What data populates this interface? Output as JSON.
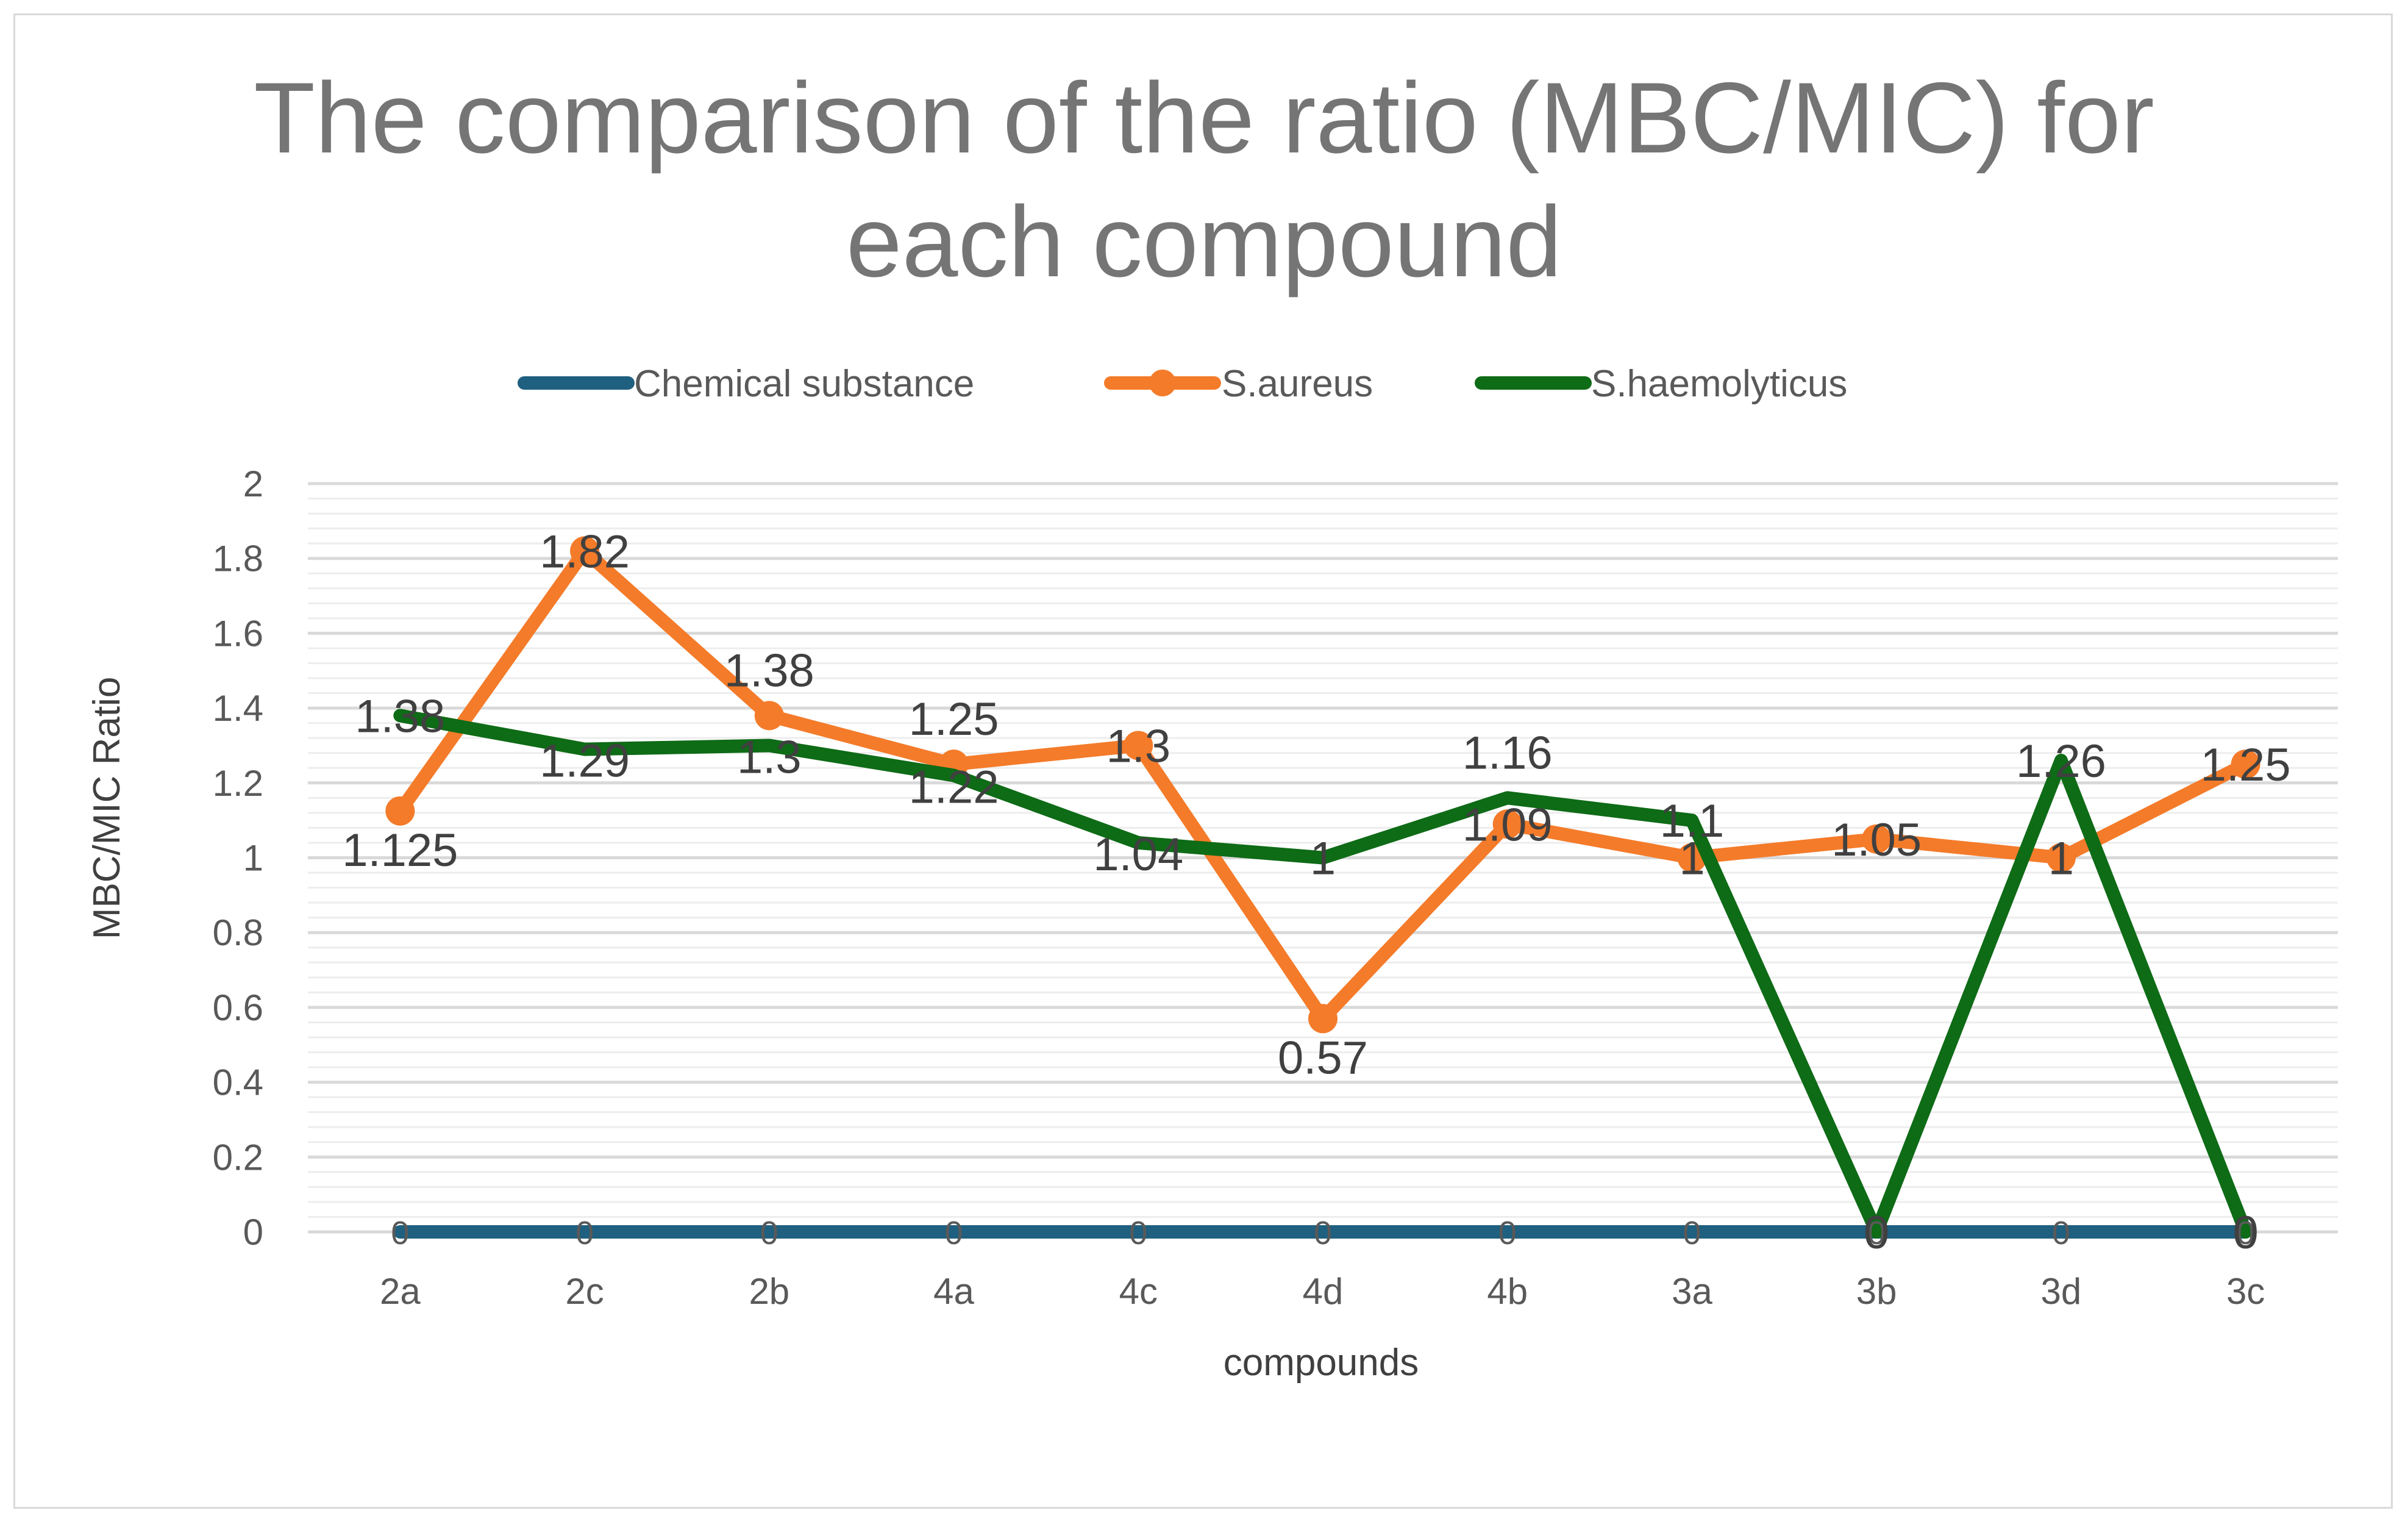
{
  "chart_data": {
    "type": "line",
    "title": "The comparison of the ratio (MBC/MIC) for each compound",
    "title_lines": [
      "The comparison of the ratio (MBC/MIC) for",
      "each compound"
    ],
    "xlabel": "compounds",
    "ylabel": "MBC/MIC Ratio",
    "categories": [
      "2a",
      "2c",
      "2b",
      "4a",
      "4c",
      "4d",
      "4b",
      "3a",
      "3b",
      "3d",
      "3c"
    ],
    "ylim": [
      0,
      2
    ],
    "y_ticks": [
      "0",
      "0.2",
      "0.4",
      "0.6",
      "0.8",
      "1",
      "1.2",
      "1.4",
      "1.6",
      "1.8",
      "2"
    ],
    "grid": true,
    "legend_position": "top",
    "series": [
      {
        "name": "Chemical substance",
        "color": "#1f5f7f",
        "marker": "none",
        "values": [
          0,
          0,
          0,
          0,
          0,
          0,
          0,
          0,
          0,
          0,
          0
        ],
        "labels": [
          "0",
          "0",
          "0",
          "0",
          "0",
          "0",
          "0",
          "0",
          "0",
          "0",
          "0"
        ]
      },
      {
        "name": "S.aureus",
        "color": "#f47b2a",
        "marker": "circle",
        "values": [
          1.125,
          1.82,
          1.38,
          1.25,
          1.3,
          0.57,
          1.09,
          1,
          1.05,
          1,
          1.25
        ],
        "labels": [
          "1.125",
          "1.82",
          "1.38",
          "1.25",
          "1.3",
          "0.57",
          "1.09",
          "1",
          "1.05",
          "1",
          "1.25"
        ]
      },
      {
        "name": "S.haemolyticus",
        "color": "#0e6b16",
        "marker": "none",
        "values": [
          1.38,
          1.29,
          1.3,
          1.22,
          1.04,
          1,
          1.16,
          1.1,
          0,
          1.26,
          0
        ],
        "labels": [
          "1.38",
          "1.29",
          "1.3",
          "1.22",
          "1.04",
          "1",
          "1.16",
          "1.1",
          "0",
          "1.26",
          "0"
        ]
      }
    ]
  }
}
